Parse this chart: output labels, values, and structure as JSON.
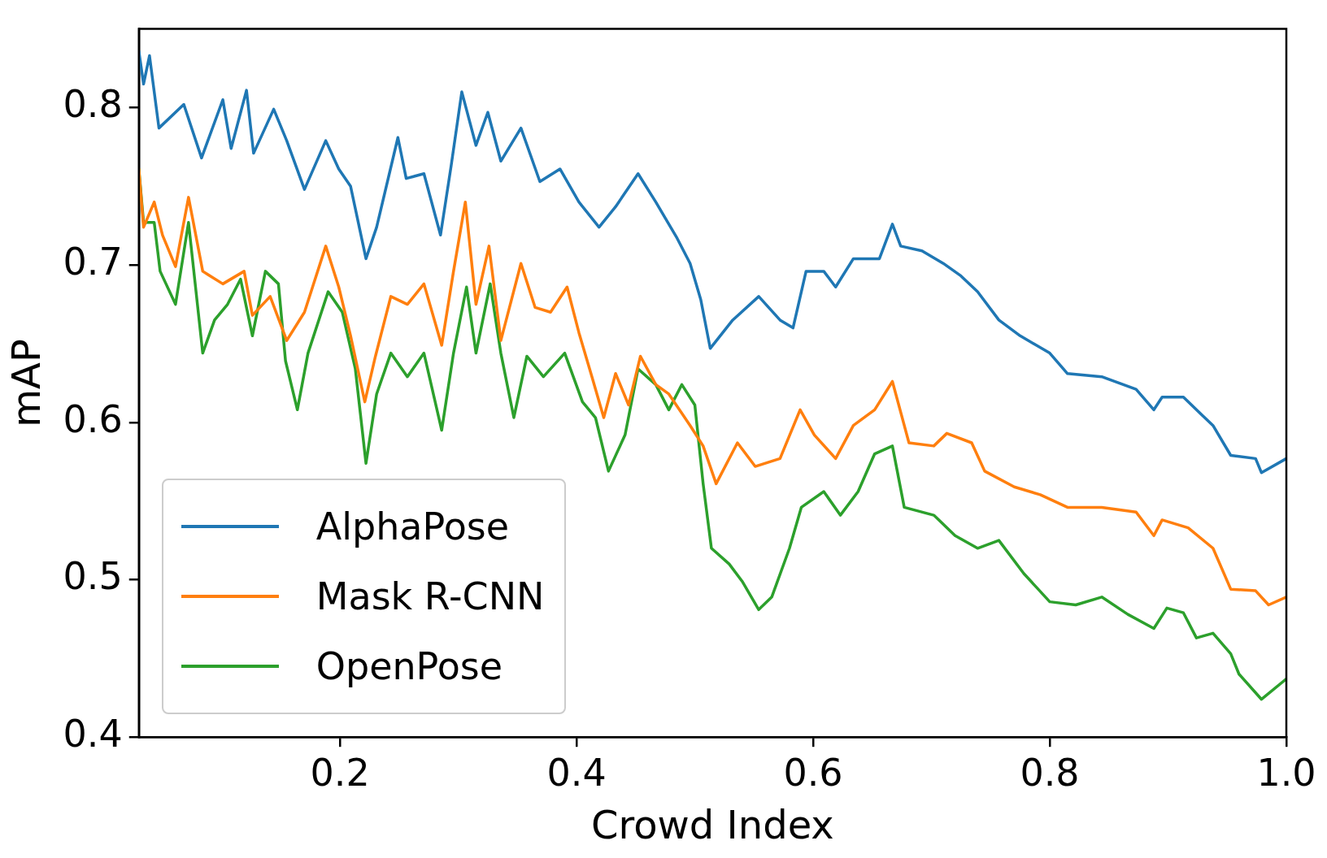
{
  "chart_data": {
    "type": "line",
    "xlabel": "Crowd Index",
    "ylabel": "mAP",
    "xlim": [
      0.03,
      1.0
    ],
    "ylim": [
      0.4,
      0.85
    ],
    "xticks": [
      0.2,
      0.4,
      0.6,
      0.8,
      {
        "value": 1.0,
        "label": "1.0"
      }
    ],
    "yticks": [
      0.4,
      0.5,
      0.6,
      0.7,
      0.8
    ],
    "grid": false,
    "legend": "bottom left",
    "marker": "none",
    "line_style": "solid",
    "series": [
      {
        "name": "AlphaPose",
        "color": "#1f77b4",
        "x": [
          0.03,
          0.034,
          0.039,
          0.047,
          0.068,
          0.083,
          0.101,
          0.108,
          0.121,
          0.127,
          0.144,
          0.155,
          0.17,
          0.188,
          0.199,
          0.209,
          0.222,
          0.231,
          0.249,
          0.256,
          0.271,
          0.285,
          0.294,
          0.303,
          0.315,
          0.325,
          0.336,
          0.353,
          0.369,
          0.386,
          0.402,
          0.419,
          0.433,
          0.452,
          0.467,
          0.485,
          0.496,
          0.505,
          0.513,
          0.532,
          0.554,
          0.572,
          0.583,
          0.594,
          0.609,
          0.619,
          0.634,
          0.656,
          0.667,
          0.674,
          0.692,
          0.71,
          0.725,
          0.739,
          0.757,
          0.775,
          0.8,
          0.815,
          0.844,
          0.873,
          0.888,
          0.895,
          0.913,
          0.924,
          0.938,
          0.953,
          0.974,
          0.979,
          1.0
        ],
        "values": [
          0.836,
          0.815,
          0.833,
          0.787,
          0.802,
          0.768,
          0.805,
          0.774,
          0.811,
          0.771,
          0.799,
          0.779,
          0.748,
          0.779,
          0.761,
          0.75,
          0.704,
          0.724,
          0.781,
          0.755,
          0.758,
          0.719,
          0.763,
          0.81,
          0.776,
          0.797,
          0.766,
          0.787,
          0.753,
          0.761,
          0.74,
          0.724,
          0.737,
          0.758,
          0.74,
          0.717,
          0.701,
          0.678,
          0.647,
          0.665,
          0.68,
          0.665,
          0.66,
          0.696,
          0.696,
          0.686,
          0.704,
          0.704,
          0.726,
          0.712,
          0.709,
          0.701,
          0.693,
          0.683,
          0.665,
          0.655,
          0.644,
          0.631,
          0.629,
          0.621,
          0.608,
          0.616,
          0.616,
          0.608,
          0.598,
          0.579,
          0.577,
          0.568,
          0.577
        ]
      },
      {
        "name": "Mask R-CNN",
        "color": "#ff7f0e",
        "x": [
          0.03,
          0.034,
          0.043,
          0.05,
          0.061,
          0.072,
          0.084,
          0.101,
          0.119,
          0.126,
          0.141,
          0.155,
          0.17,
          0.188,
          0.199,
          0.209,
          0.221,
          0.23,
          0.243,
          0.257,
          0.271,
          0.286,
          0.296,
          0.306,
          0.315,
          0.326,
          0.336,
          0.353,
          0.365,
          0.378,
          0.392,
          0.402,
          0.413,
          0.423,
          0.433,
          0.444,
          0.454,
          0.467,
          0.478,
          0.496,
          0.507,
          0.518,
          0.536,
          0.551,
          0.572,
          0.589,
          0.601,
          0.619,
          0.634,
          0.652,
          0.667,
          0.681,
          0.702,
          0.713,
          0.734,
          0.745,
          0.77,
          0.792,
          0.815,
          0.844,
          0.873,
          0.888,
          0.895,
          0.917,
          0.938,
          0.953,
          0.974,
          0.985,
          1.0
        ],
        "values": [
          0.761,
          0.724,
          0.74,
          0.719,
          0.699,
          0.743,
          0.696,
          0.688,
          0.696,
          0.668,
          0.68,
          0.652,
          0.67,
          0.712,
          0.686,
          0.655,
          0.613,
          0.642,
          0.68,
          0.675,
          0.688,
          0.649,
          0.696,
          0.74,
          0.675,
          0.712,
          0.652,
          0.701,
          0.673,
          0.67,
          0.686,
          0.657,
          0.629,
          0.603,
          0.631,
          0.611,
          0.642,
          0.624,
          0.618,
          0.598,
          0.585,
          0.561,
          0.587,
          0.572,
          0.577,
          0.608,
          0.592,
          0.577,
          0.598,
          0.608,
          0.626,
          0.587,
          0.585,
          0.593,
          0.587,
          0.569,
          0.559,
          0.554,
          0.546,
          0.546,
          0.543,
          0.528,
          0.538,
          0.533,
          0.52,
          0.494,
          0.493,
          0.484,
          0.489
        ]
      },
      {
        "name": "OpenPose",
        "color": "#2ca02c",
        "x": [
          0.03,
          0.034,
          0.043,
          0.048,
          0.061,
          0.072,
          0.084,
          0.094,
          0.105,
          0.116,
          0.126,
          0.137,
          0.148,
          0.154,
          0.164,
          0.173,
          0.19,
          0.202,
          0.213,
          0.222,
          0.231,
          0.243,
          0.257,
          0.271,
          0.286,
          0.296,
          0.307,
          0.315,
          0.327,
          0.336,
          0.347,
          0.358,
          0.372,
          0.39,
          0.405,
          0.416,
          0.427,
          0.441,
          0.452,
          0.467,
          0.478,
          0.489,
          0.5,
          0.507,
          0.514,
          0.529,
          0.54,
          0.554,
          0.565,
          0.58,
          0.59,
          0.609,
          0.623,
          0.638,
          0.652,
          0.667,
          0.677,
          0.702,
          0.72,
          0.739,
          0.757,
          0.778,
          0.8,
          0.822,
          0.844,
          0.866,
          0.888,
          0.899,
          0.913,
          0.924,
          0.938,
          0.953,
          0.96,
          0.979,
          1.0
        ],
        "values": [
          0.761,
          0.727,
          0.727,
          0.696,
          0.675,
          0.727,
          0.644,
          0.665,
          0.675,
          0.691,
          0.655,
          0.696,
          0.688,
          0.639,
          0.608,
          0.644,
          0.683,
          0.67,
          0.634,
          0.574,
          0.618,
          0.644,
          0.629,
          0.644,
          0.595,
          0.644,
          0.686,
          0.644,
          0.688,
          0.644,
          0.603,
          0.642,
          0.629,
          0.644,
          0.613,
          0.603,
          0.569,
          0.592,
          0.634,
          0.624,
          0.608,
          0.624,
          0.611,
          0.561,
          0.52,
          0.51,
          0.499,
          0.481,
          0.489,
          0.52,
          0.546,
          0.556,
          0.541,
          0.556,
          0.58,
          0.585,
          0.546,
          0.541,
          0.528,
          0.52,
          0.525,
          0.504,
          0.486,
          0.484,
          0.489,
          0.478,
          0.469,
          0.482,
          0.479,
          0.463,
          0.466,
          0.453,
          0.44,
          0.424,
          0.437
        ]
      }
    ]
  }
}
